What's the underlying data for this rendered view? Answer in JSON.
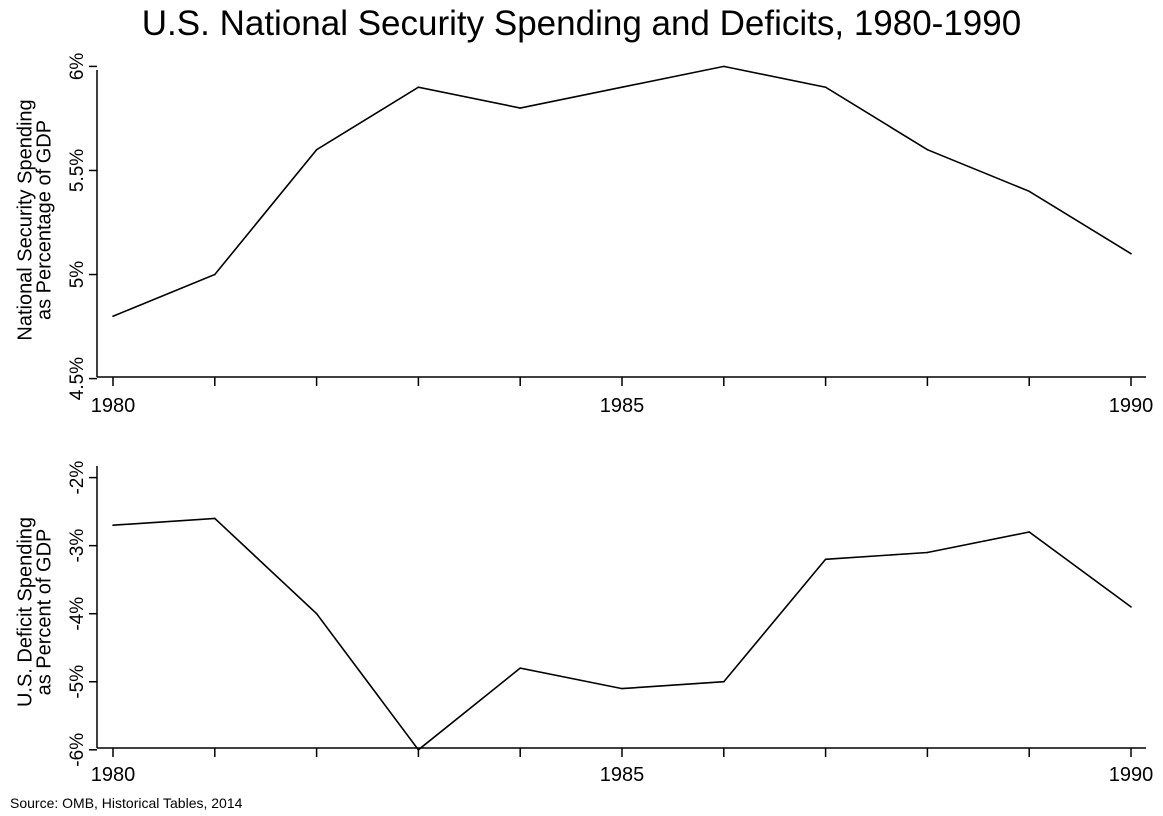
{
  "title": "U.S. National Security Spending and Deficits, 1980-1990",
  "source": "Source: OMB, Historical Tables, 2014",
  "chart_data": [
    {
      "type": "line",
      "title": "",
      "xlabel": "",
      "ylabel_lines": [
        "National Security Spending",
        "as Percentage of GDP"
      ],
      "x": [
        1980,
        1981,
        1982,
        1983,
        1984,
        1985,
        1986,
        1987,
        1988,
        1989,
        1990
      ],
      "values": [
        4.8,
        5.0,
        5.6,
        5.9,
        5.8,
        5.9,
        6.0,
        5.9,
        5.6,
        5.4,
        5.1
      ],
      "xlim": [
        1980,
        1990
      ],
      "ylim": [
        4.45,
        6.05
      ],
      "x_ticks": [
        1980,
        1985,
        1990
      ],
      "x_minor_ticks": [
        1981,
        1982,
        1983,
        1984,
        1986,
        1987,
        1988,
        1989
      ],
      "y_ticks": [
        4.5,
        5,
        5.5,
        6
      ],
      "y_tick_labels": [
        "4.5%",
        "5%",
        "5.5%",
        "6%"
      ],
      "grid": false,
      "color": "#000000"
    },
    {
      "type": "line",
      "title": "",
      "xlabel": "",
      "ylabel_lines": [
        "U.S. Deficit Spending",
        "as Percent of GDP"
      ],
      "x": [
        1980,
        1981,
        1982,
        1983,
        1984,
        1985,
        1986,
        1987,
        1988,
        1989,
        1990
      ],
      "values": [
        -2.7,
        -2.6,
        -4.0,
        -6.0,
        -4.8,
        -5.1,
        -5.0,
        -3.2,
        -3.1,
        -2.8,
        -3.9
      ],
      "xlim": [
        1980,
        1990
      ],
      "ylim": [
        -6.15,
        -1.8
      ],
      "x_ticks": [
        1980,
        1985,
        1990
      ],
      "x_minor_ticks": [
        1981,
        1982,
        1983,
        1984,
        1986,
        1987,
        1988,
        1989
      ],
      "y_ticks": [
        -6,
        -5,
        -4,
        -3,
        -2
      ],
      "y_tick_labels": [
        "-6%",
        "-5%",
        "-4%",
        "-3%",
        "-2%"
      ],
      "grid": false,
      "color": "#000000"
    }
  ]
}
